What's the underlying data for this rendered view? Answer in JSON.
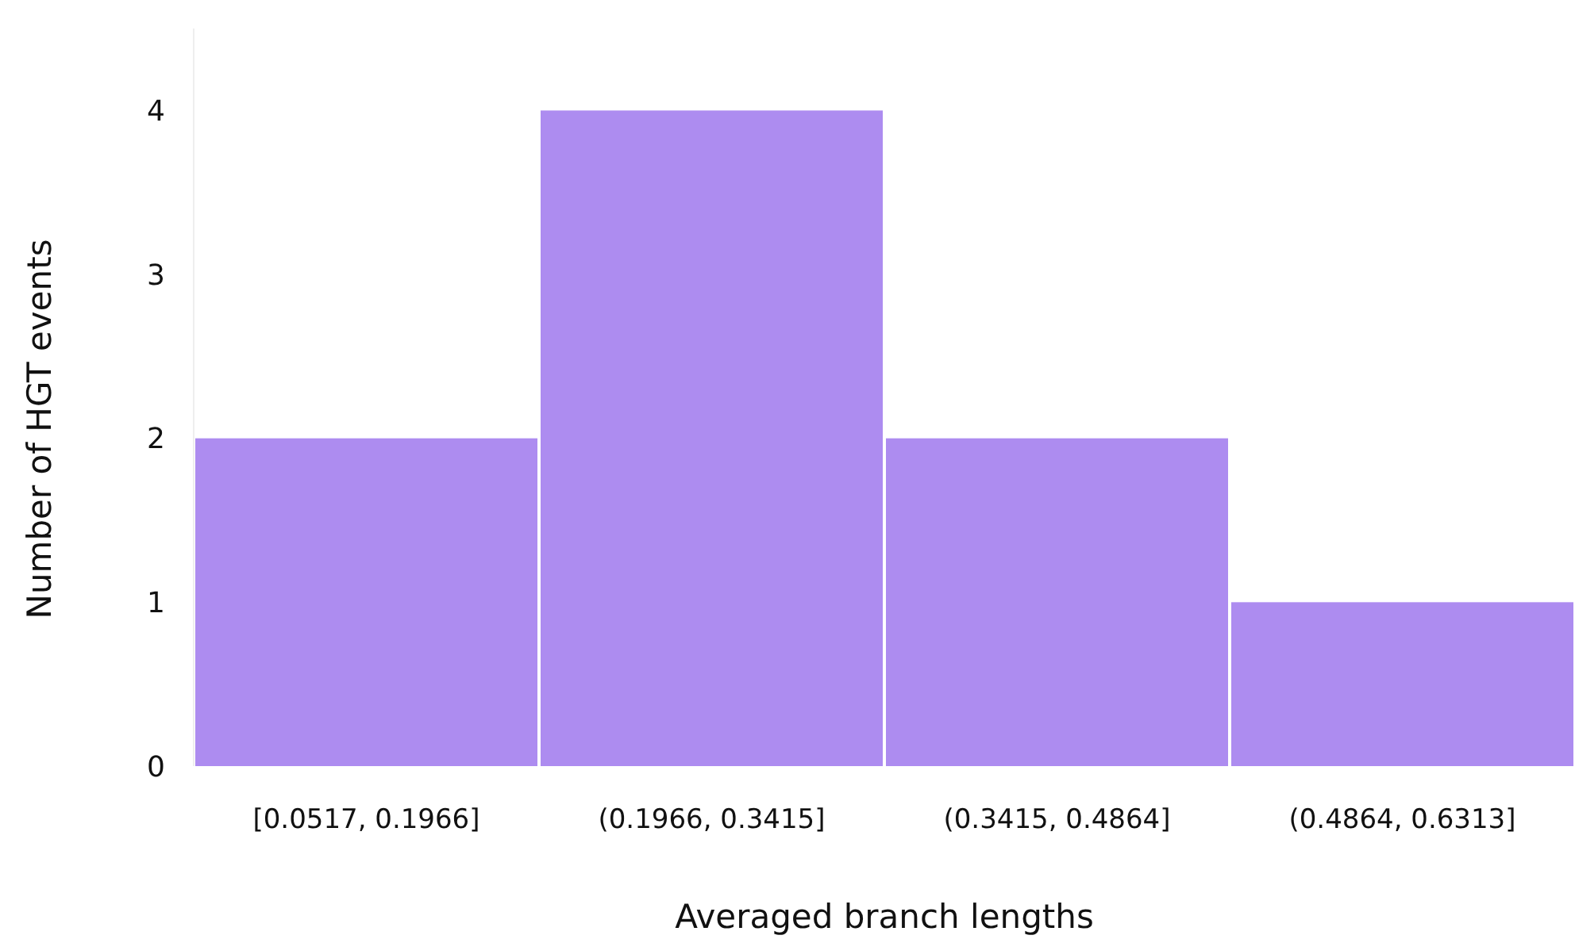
{
  "chart_data": {
    "type": "bar",
    "xlabel": "Averaged branch lengths",
    "ylabel": "Number of HGT events",
    "categories": [
      "[0.0517, 0.1966]",
      "(0.1966, 0.3415]",
      "(0.3415, 0.4864]",
      "(0.4864, 0.6313]"
    ],
    "values": [
      2,
      4,
      2,
      1
    ],
    "color": "#ad8cf0",
    "ylim": [
      0,
      4.5
    ],
    "yticks": [
      0,
      1,
      2,
      3,
      4
    ],
    "grid": false
  }
}
